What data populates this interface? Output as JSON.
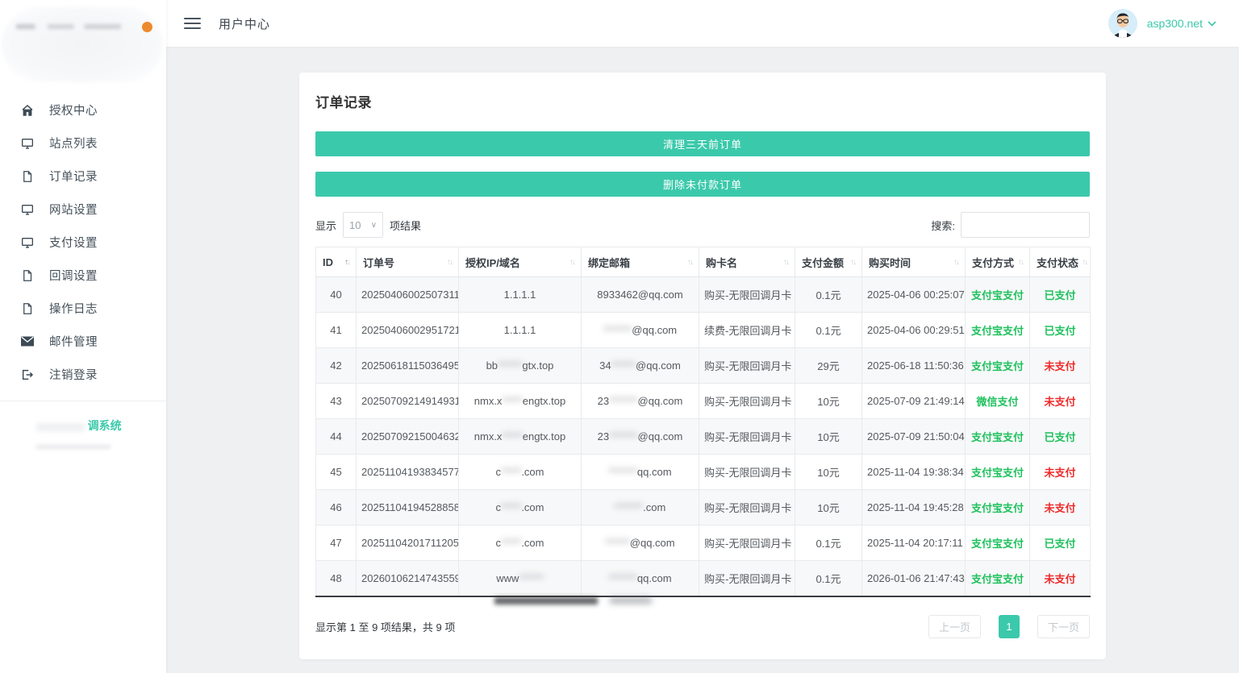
{
  "accent": "#3bc9ab",
  "colors": {
    "paid_green": "#1ec15d",
    "unpaid_red": "#ee2b2b",
    "logo_dot": "#ed8a2e"
  },
  "sidebar": {
    "items": [
      {
        "label": "授权中心",
        "icon": "home-icon"
      },
      {
        "label": "站点列表",
        "icon": "monitor-icon"
      },
      {
        "label": "订单记录",
        "icon": "file-icon"
      },
      {
        "label": "网站设置",
        "icon": "monitor-icon"
      },
      {
        "label": "支付设置",
        "icon": "monitor-icon"
      },
      {
        "label": "回调设置",
        "icon": "file-icon"
      },
      {
        "label": "操作日志",
        "icon": "file-icon"
      },
      {
        "label": "邮件管理",
        "icon": "mail-icon"
      },
      {
        "label": "注销登录",
        "icon": "logout-icon"
      }
    ],
    "footer_text": "调系统"
  },
  "header": {
    "title": "用户中心",
    "username": "asp300.net"
  },
  "page": {
    "card_title": "订单记录",
    "clear_button": "清理三天前订单",
    "delete_button": "删除未付款订单",
    "show_label": "显示",
    "page_size": "10",
    "results_label": "项结果",
    "search_label": "搜索:"
  },
  "table": {
    "headers": [
      "ID",
      "订单号",
      "授权IP/域名",
      "绑定邮箱",
      "购卡名",
      "支付金额",
      "购买时间",
      "支付方式",
      "支付状态"
    ],
    "rows": [
      {
        "id": "40",
        "order_no": "20250406002507311",
        "domain": [
          {
            "t": "1.1.1.1"
          }
        ],
        "email": [
          {
            "t": "8933462@qq.com"
          }
        ],
        "card": "购买-无限回调月卡",
        "amount": "0.1元",
        "time": "2025-04-06 00:25:07",
        "method": "支付宝支付",
        "status": "已支付",
        "paid": true
      },
      {
        "id": "41",
        "order_no": "20250406002951721",
        "domain": [
          {
            "t": "1.1.1.1"
          }
        ],
        "email": [
          {
            "t": "*******",
            "b": 1
          },
          {
            "t": "@qq.com"
          }
        ],
        "card": "续费-无限回调月卡",
        "amount": "0.1元",
        "time": "2025-04-06 00:29:51",
        "method": "支付宝支付",
        "status": "已支付",
        "paid": true
      },
      {
        "id": "42",
        "order_no": "20250618115036495",
        "domain": [
          {
            "t": "bb"
          },
          {
            "t": "******",
            "b": 1
          },
          {
            "t": "gtx.top"
          }
        ],
        "email": [
          {
            "t": "34"
          },
          {
            "t": "******",
            "b": 1
          },
          {
            "t": "@qq.com"
          }
        ],
        "card": "购买-无限回调月卡",
        "amount": "29元",
        "time": "2025-06-18 11:50:36",
        "method": "支付宝支付",
        "status": "未支付",
        "paid": false
      },
      {
        "id": "43",
        "order_no": "20250709214914931",
        "domain": [
          {
            "t": "nmx.x"
          },
          {
            "t": "*****",
            "b": 1
          },
          {
            "t": "engtx.top"
          }
        ],
        "email": [
          {
            "t": "23"
          },
          {
            "t": "*******",
            "b": 1
          },
          {
            "t": "@qq.com"
          }
        ],
        "card": "购买-无限回调月卡",
        "amount": "10元",
        "time": "2025-07-09 21:49:14",
        "method": "微信支付",
        "status": "未支付",
        "paid": false
      },
      {
        "id": "44",
        "order_no": "20250709215004632",
        "domain": [
          {
            "t": "nmx.x"
          },
          {
            "t": "*****",
            "b": 1
          },
          {
            "t": "engtx.top"
          }
        ],
        "email": [
          {
            "t": "23"
          },
          {
            "t": "*******",
            "b": 1
          },
          {
            "t": "@qq.com"
          }
        ],
        "card": "购买-无限回调月卡",
        "amount": "10元",
        "time": "2025-07-09 21:50:04",
        "method": "支付宝支付",
        "status": "已支付",
        "paid": true
      },
      {
        "id": "45",
        "order_no": "20251104193834577",
        "domain": [
          {
            "t": "c"
          },
          {
            "t": "*****",
            "b": 1
          },
          {
            "t": ".com"
          }
        ],
        "email": [
          {
            "t": "*******",
            "b": 1
          },
          {
            "t": "qq.com"
          }
        ],
        "card": "购买-无限回调月卡",
        "amount": "10元",
        "time": "2025-11-04 19:38:34",
        "method": "支付宝支付",
        "status": "未支付",
        "paid": false
      },
      {
        "id": "46",
        "order_no": "20251104194528858",
        "domain": [
          {
            "t": "c"
          },
          {
            "t": "*****",
            "b": 1
          },
          {
            "t": ".com"
          }
        ],
        "email": [
          {
            "t": "*******",
            "b": 1
          },
          {
            "t": ".com"
          }
        ],
        "card": "购买-无限回调月卡",
        "amount": "10元",
        "time": "2025-11-04 19:45:28",
        "method": "支付宝支付",
        "status": "未支付",
        "paid": false
      },
      {
        "id": "47",
        "order_no": "20251104201711205",
        "domain": [
          {
            "t": "c"
          },
          {
            "t": "*****",
            "b": 1
          },
          {
            "t": ".com"
          }
        ],
        "email": [
          {
            "t": "******",
            "b": 1
          },
          {
            "t": "@qq.com"
          }
        ],
        "card": "购买-无限回调月卡",
        "amount": "0.1元",
        "time": "2025-11-04 20:17:11",
        "method": "支付宝支付",
        "status": "已支付",
        "paid": true
      },
      {
        "id": "48",
        "order_no": "20260106214743559",
        "domain": [
          {
            "t": "www"
          },
          {
            "t": "******",
            "b": 1
          }
        ],
        "email": [
          {
            "t": "*******",
            "b": 1
          },
          {
            "t": "qq.com"
          }
        ],
        "card": "购买-无限回调月卡",
        "amount": "0.1元",
        "time": "2026-01-06 21:47:43",
        "method": "支付宝支付",
        "status": "未支付",
        "paid": false
      }
    ]
  },
  "footer": {
    "info": "显示第 1 至 9 项结果，共 9 项",
    "prev": "上一页",
    "page": "1",
    "next": "下一页"
  }
}
